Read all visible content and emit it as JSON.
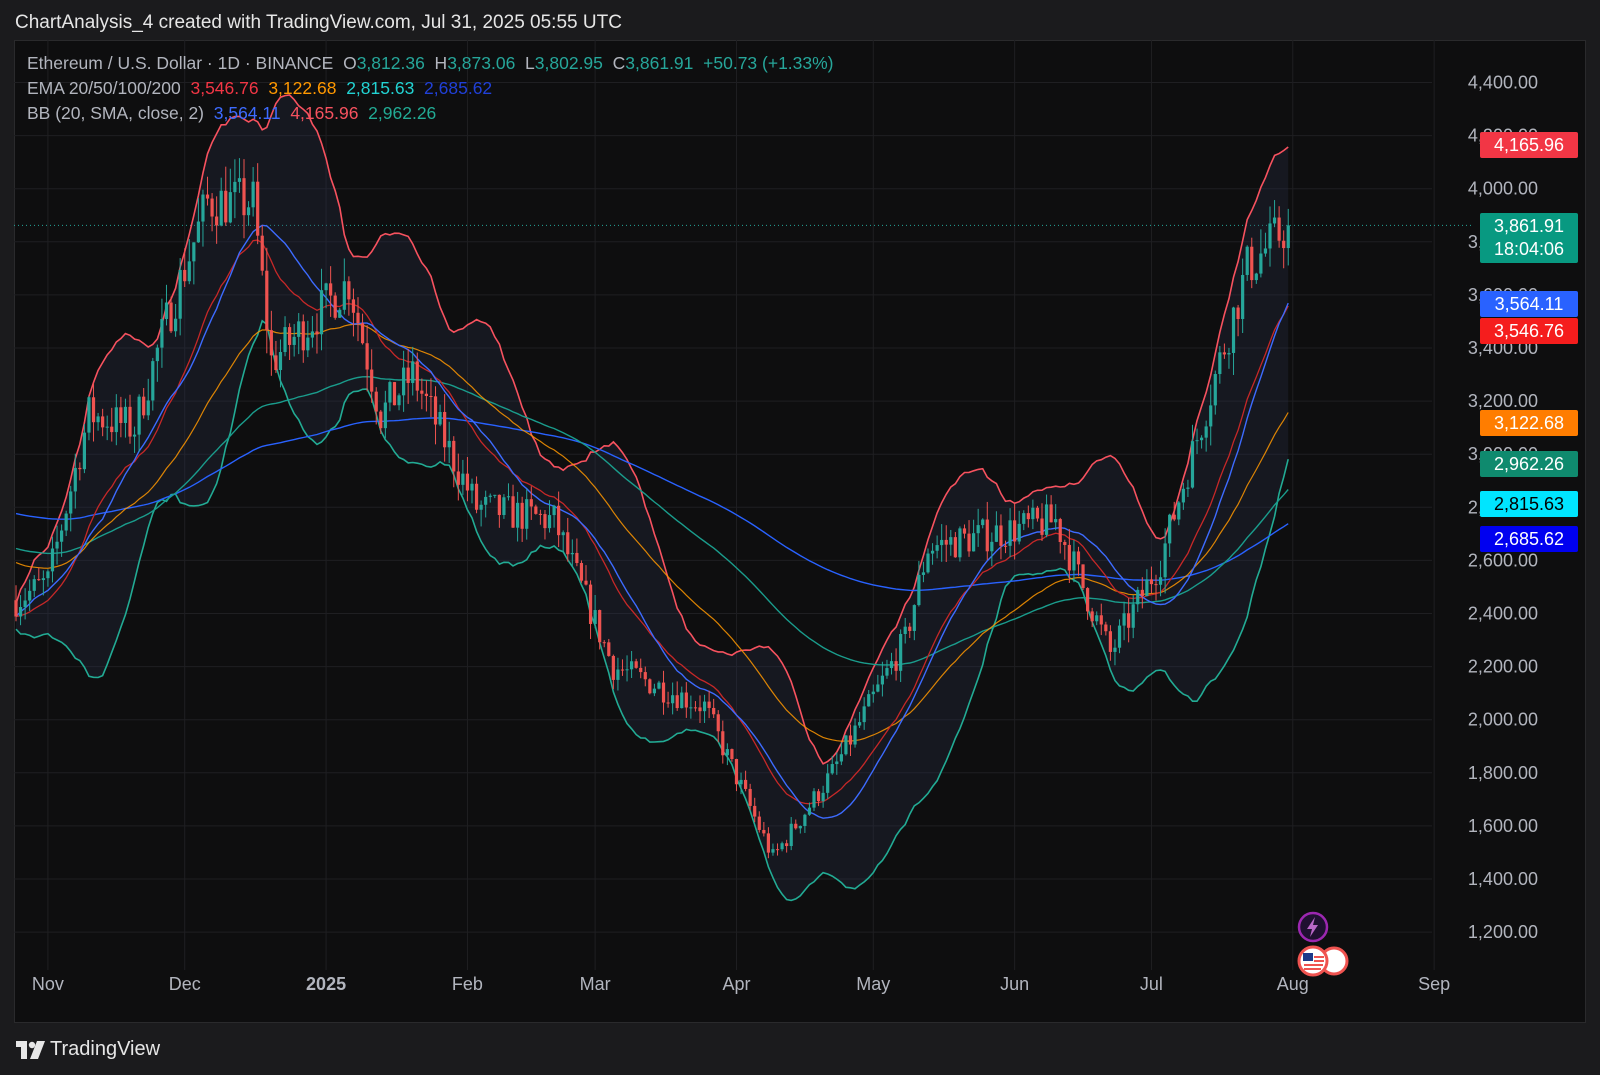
{
  "header": {
    "title": "ChartAnalysis_4 created with TradingView.com, Jul 31, 2025 05:55 UTC"
  },
  "legend": {
    "symbol": "Ethereum / U.S. Dollar · 1D · BINANCE",
    "o_label": "O",
    "o_value": "3,812.36",
    "h_label": "H",
    "h_value": "3,873.06",
    "l_label": "L",
    "l_value": "3,802.95",
    "c_label": "C",
    "c_value": "3,861.91",
    "change": "+50.73 (+1.33%)",
    "ema_label": "EMA 20/50/100/200",
    "ema_values": [
      "3,546.76",
      "3,122.68",
      "2,815.63",
      "2,685.62"
    ],
    "bb_label": "BB (20, SMA, close, 2)",
    "bb_values": [
      "3,564.11",
      "4,165.96",
      "2,962.26"
    ]
  },
  "colors": {
    "up": "#26a69a",
    "down": "#ef5350",
    "ema20": "#f23645",
    "ema50": "#ff9800",
    "ema100": "#22d3d3",
    "ema200": "#2962ff",
    "bb_basis": "#3d6bff",
    "bb_upper": "#f7525f",
    "bb_lower": "#22ab94"
  },
  "price_tags": {
    "bb_upper": "4,165.96",
    "last_price": "3,861.91",
    "countdown": "18:04:06",
    "bb_basis": "3,564.11",
    "ema20": "3,546.76",
    "ema50": "3,122.68",
    "bb_lower": "2,962.26",
    "ema100": "2,815.63",
    "ema200": "2,685.62"
  },
  "chart_data": {
    "type": "candlestick",
    "symbol": "ETH/USD",
    "interval": "1D",
    "exchange": "BINANCE",
    "y_axis_ticks": [
      "4,400.00",
      "4,200.00",
      "4,000.00",
      "3,800.00",
      "3,600.00",
      "3,400.00",
      "3,200.00",
      "3,000.00",
      "2,800.00",
      "2,600.00",
      "2,400.00",
      "2,200.00",
      "2,000.00",
      "1,800.00",
      "1,600.00",
      "1,400.00",
      "1,200.00"
    ],
    "x_axis_ticks": [
      "Nov",
      "Dec",
      "2025",
      "Feb",
      "Mar",
      "Apr",
      "May",
      "Jun",
      "Jul",
      "Aug",
      "Sep"
    ],
    "ylim": [
      1100,
      4560
    ],
    "last_close": 3861.91,
    "monthly_path_close": [
      {
        "date": "2024-10-25",
        "close": 2450
      },
      {
        "date": "2024-11-01",
        "close": 2520
      },
      {
        "date": "2024-11-10",
        "close": 3150
      },
      {
        "date": "2024-11-20",
        "close": 3100
      },
      {
        "date": "2024-11-27",
        "close": 3500
      },
      {
        "date": "2024-12-06",
        "close": 3950
      },
      {
        "date": "2024-12-16",
        "close": 3950
      },
      {
        "date": "2024-12-20",
        "close": 3350
      },
      {
        "date": "2025-01-06",
        "close": 3650
      },
      {
        "date": "2025-01-13",
        "close": 3150
      },
      {
        "date": "2025-01-20",
        "close": 3300
      },
      {
        "date": "2025-02-03",
        "close": 2800
      },
      {
        "date": "2025-02-20",
        "close": 2750
      },
      {
        "date": "2025-03-05",
        "close": 2200
      },
      {
        "date": "2025-03-25",
        "close": 2050
      },
      {
        "date": "2025-04-09",
        "close": 1480
      },
      {
        "date": "2025-04-22",
        "close": 1800
      },
      {
        "date": "2025-05-08",
        "close": 2300
      },
      {
        "date": "2025-05-13",
        "close": 2650
      },
      {
        "date": "2025-06-10",
        "close": 2750
      },
      {
        "date": "2025-06-22",
        "close": 2250
      },
      {
        "date": "2025-07-03",
        "close": 2600
      },
      {
        "date": "2025-07-16",
        "close": 3350
      },
      {
        "date": "2025-07-22",
        "close": 3700
      },
      {
        "date": "2025-07-31",
        "close": 3861.91
      }
    ]
  },
  "footer": {
    "brand": "TradingView"
  }
}
